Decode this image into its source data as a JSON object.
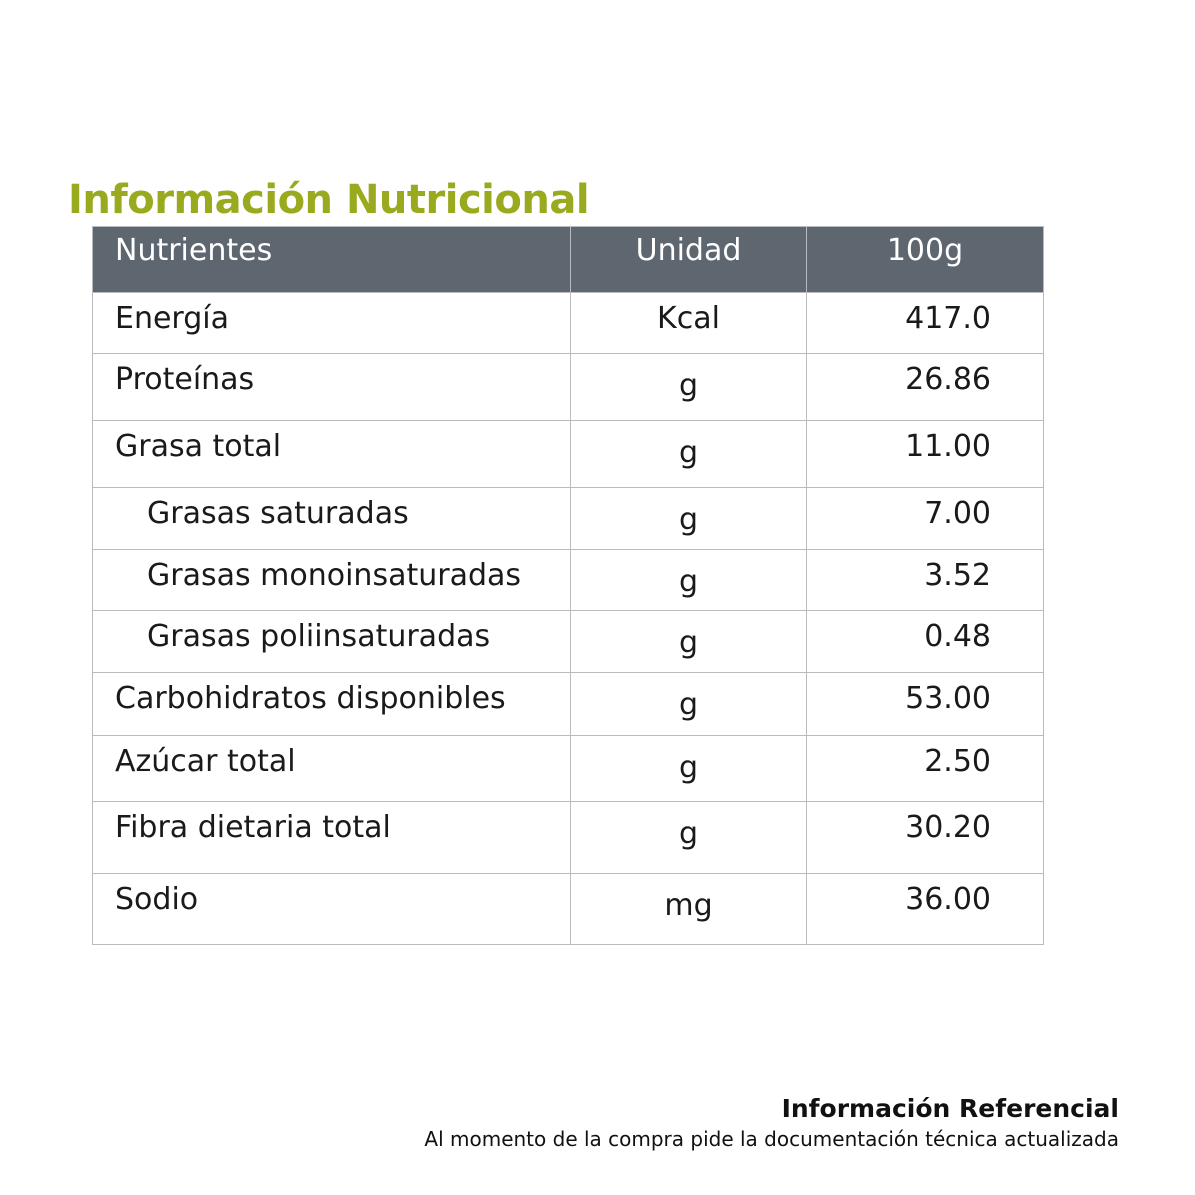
{
  "title": "Información Nutricional",
  "colors": {
    "title": "#9aaa1e",
    "header_bg": "#5e6670",
    "header_text": "#ffffff",
    "border": "#b9bcbf"
  },
  "table": {
    "headers": [
      "Nutrientes",
      "Unidad",
      "100g"
    ],
    "rows": [
      {
        "nutrient": "Energía",
        "unit": "Kcal",
        "value": "417.0",
        "indent": false
      },
      {
        "nutrient": "Proteínas",
        "unit": "g",
        "value": "26.86",
        "indent": false
      },
      {
        "nutrient": "Grasa total",
        "unit": "g",
        "value": "11.00",
        "indent": false
      },
      {
        "nutrient": "Grasas saturadas",
        "unit": "g",
        "value": "7.00",
        "indent": true
      },
      {
        "nutrient": "Grasas monoinsaturadas",
        "unit": "g",
        "value": "3.52",
        "indent": true
      },
      {
        "nutrient": "Grasas poliinsaturadas",
        "unit": "g",
        "value": "0.48",
        "indent": true
      },
      {
        "nutrient": "Carbohidratos disponibles",
        "unit": "g",
        "value": "53.00",
        "indent": false
      },
      {
        "nutrient": "Azúcar total",
        "unit": "g",
        "value": "2.50",
        "indent": false
      },
      {
        "nutrient": "Fibra dietaria total",
        "unit": "g",
        "value": "30.20",
        "indent": false
      },
      {
        "nutrient": "Sodio",
        "unit": "mg",
        "value": "36.00",
        "indent": false
      }
    ]
  },
  "footer": {
    "title": "Información Referencial",
    "note": "Al momento de la compra pide la documentación técnica actualizada"
  }
}
